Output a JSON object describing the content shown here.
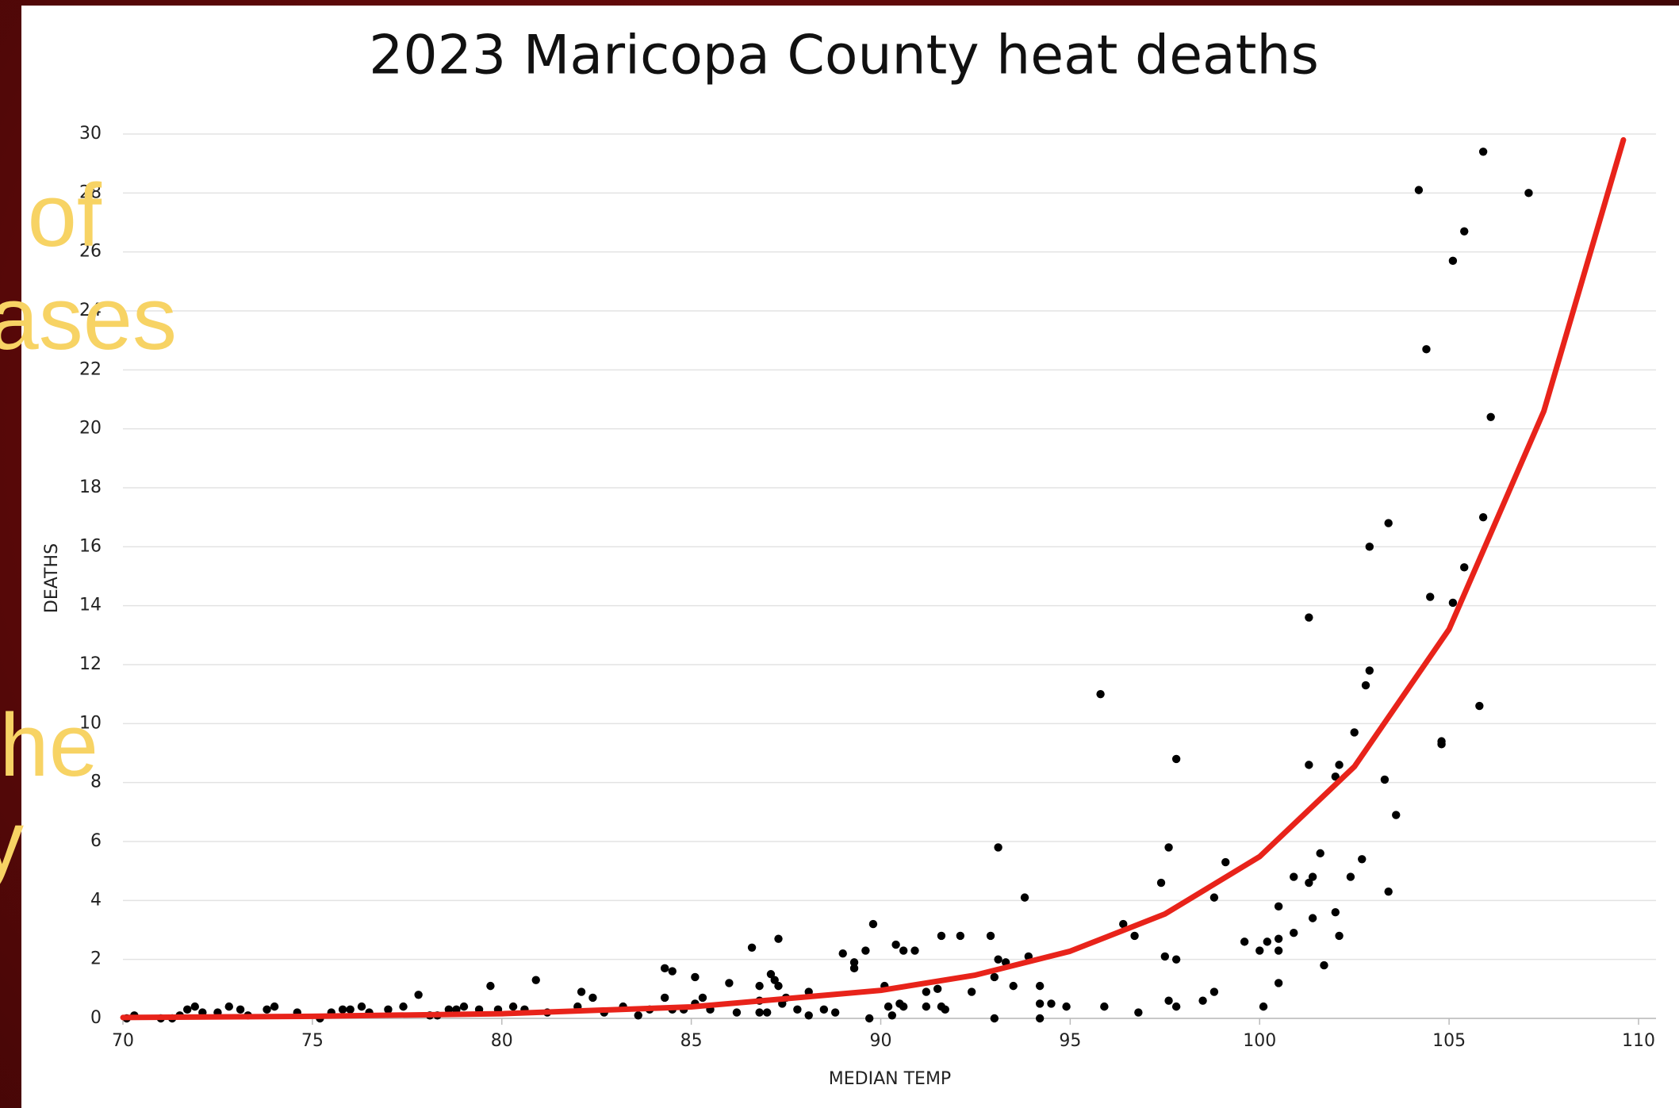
{
  "chart_data": {
    "type": "scatter",
    "title": "2023 Maricopa County heat deaths",
    "xlabel": "MEDIAN TEMP",
    "ylabel": "DEATHS",
    "annotations": [
      "of",
      "ases",
      "he",
      "y"
    ],
    "xlim": [
      70,
      110
    ],
    "xticks": [
      70,
      75,
      80,
      85,
      90,
      95,
      100,
      105,
      110
    ],
    "ylim": [
      0,
      30
    ],
    "yticks": [
      0,
      2,
      4,
      6,
      8,
      10,
      12,
      14,
      16,
      18,
      20,
      22,
      24,
      26,
      28,
      30
    ],
    "grid": true,
    "series": [
      {
        "color": "#000000",
        "x": [
          105.9,
          104.2,
          107.1,
          105.4,
          105.1,
          104.4,
          106.1,
          103.4,
          105.9,
          102.9,
          105.4,
          104.5,
          105.1,
          101.3,
          95.8,
          102.9,
          102.8,
          105.8,
          102.5,
          104.8,
          104.8,
          97.8,
          101.3,
          102.1,
          102.0,
          103.3,
          103.6,
          93.1,
          97.6,
          101.6,
          102.7,
          99.1,
          100.9,
          101.4,
          101.3,
          102.4,
          97.4,
          103.4,
          93.8,
          98.8,
          100.5,
          102.0,
          101.4,
          96.4,
          89.8,
          96.7,
          99.6,
          100.2,
          100.5,
          100.9,
          102.1,
          92.9,
          91.6,
          92.1,
          87.3,
          86.6,
          90.4,
          90.6,
          90.9,
          89.0,
          89.6,
          93.9,
          97.5,
          97.8,
          100.0,
          100.5,
          89.3,
          89.3,
          93.1,
          93.3,
          101.7,
          84.3,
          84.5,
          85.1,
          87.1,
          86.0,
          87.2,
          80.9,
          79.7,
          86.8,
          87.3,
          90.1,
          93.0,
          93.5,
          94.2,
          100.5,
          91.2,
          91.5,
          92.4,
          88.1,
          82.1,
          77.8,
          98.8,
          98.5,
          82.4,
          84.3,
          85.3,
          85.1,
          86.8,
          87.5,
          87.4,
          90.5,
          94.2,
          94.5,
          94.9,
          95.9,
          97.6,
          97.8,
          100.1,
          91.2,
          91.6,
          91.7,
          90.6,
          90.2,
          90.3,
          89.7,
          93.0,
          94.2,
          96.8,
          88.8,
          88.1,
          88.5,
          87.8,
          86.8,
          87.0,
          86.2,
          85.5,
          84.8,
          84.5,
          83.9,
          83.2,
          83.6,
          82.7,
          82.0,
          81.2,
          80.6,
          80.3,
          79.9,
          79.4,
          79.0,
          78.8,
          78.6,
          78.3,
          78.1,
          77.4,
          77.0,
          76.5,
          76.3,
          76.0,
          75.8,
          75.5,
          75.2,
          74.6,
          74.0,
          73.8,
          73.3,
          73.1,
          72.8,
          72.5,
          72.1,
          71.9,
          71.7,
          71.5,
          71.3,
          71.0,
          70.3,
          70.1
        ],
        "values": [
          29.4,
          28.1,
          28.0,
          26.7,
          25.7,
          22.7,
          20.4,
          16.8,
          17.0,
          16.0,
          15.3,
          14.3,
          14.1,
          13.6,
          11.0,
          11.8,
          11.3,
          10.6,
          9.7,
          9.4,
          9.3,
          8.8,
          8.6,
          8.6,
          8.2,
          8.1,
          6.9,
          5.8,
          5.8,
          5.6,
          5.4,
          5.3,
          4.8,
          4.8,
          4.6,
          4.8,
          4.6,
          4.3,
          4.1,
          4.1,
          3.8,
          3.6,
          3.4,
          3.2,
          3.2,
          2.8,
          2.6,
          2.6,
          2.7,
          2.9,
          2.8,
          2.8,
          2.8,
          2.8,
          2.7,
          2.4,
          2.5,
          2.3,
          2.3,
          2.2,
          2.3,
          2.1,
          2.1,
          2.0,
          2.3,
          2.3,
          1.9,
          1.7,
          2.0,
          1.9,
          1.8,
          1.7,
          1.6,
          1.4,
          1.5,
          1.2,
          1.3,
          1.3,
          1.1,
          1.1,
          1.1,
          1.1,
          1.4,
          1.1,
          1.1,
          1.2,
          0.9,
          1.0,
          0.9,
          0.9,
          0.9,
          0.8,
          0.9,
          0.6,
          0.7,
          0.7,
          0.7,
          0.5,
          0.6,
          0.7,
          0.5,
          0.5,
          0.5,
          0.5,
          0.4,
          0.4,
          0.6,
          0.4,
          0.4,
          0.4,
          0.4,
          0.3,
          0.4,
          0.4,
          0.1,
          0.0,
          0.0,
          0.0,
          0.2,
          0.2,
          0.1,
          0.3,
          0.3,
          0.2,
          0.2,
          0.2,
          0.3,
          0.3,
          0.3,
          0.3,
          0.4,
          0.1,
          0.2,
          0.4,
          0.2,
          0.3,
          0.4,
          0.3,
          0.3,
          0.4,
          0.3,
          0.3,
          0.1,
          0.1,
          0.4,
          0.3,
          0.2,
          0.4,
          0.3,
          0.3,
          0.2,
          0.0,
          0.2,
          0.4,
          0.3,
          0.1,
          0.3,
          0.4,
          0.2,
          0.2,
          0.4,
          0.3,
          0.1,
          0.0,
          0.0,
          0.1,
          0.0
        ]
      }
    ],
    "trend": {
      "color": "#e8231a",
      "x": [
        70,
        75,
        80,
        85,
        90,
        92.5,
        95,
        97.5,
        100,
        102.5,
        105,
        107.5,
        109.6
      ],
      "values": [
        0.03,
        0.07,
        0.16,
        0.39,
        0.95,
        1.47,
        2.28,
        3.54,
        5.49,
        8.54,
        13.2,
        20.6,
        29.8
      ]
    }
  }
}
